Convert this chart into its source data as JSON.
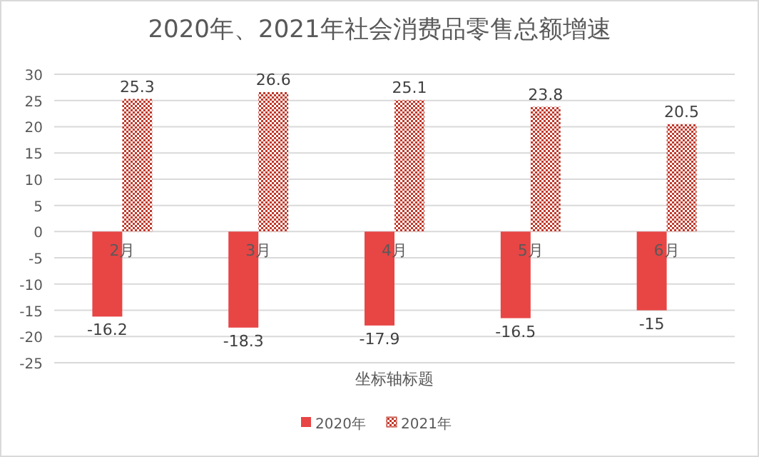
{
  "chart_data": {
    "type": "bar",
    "title": "2020年、2021年社会消费品零售总额增速",
    "xlabel": "坐标轴标题",
    "categories": [
      "2月",
      "3月",
      "4月",
      "5月",
      "6月"
    ],
    "series": [
      {
        "name": "2020年",
        "color": "#e84545",
        "values": [
          -16.2,
          -18.3,
          -17.9,
          -16.5,
          -15
        ]
      },
      {
        "name": "2021年",
        "color": "#c0392b",
        "values": [
          25.3,
          26.6,
          25.1,
          23.8,
          20.5
        ]
      }
    ],
    "ylim": [
      -25,
      30
    ],
    "yticks": [
      -25,
      -20,
      -15,
      -10,
      -5,
      0,
      5,
      10,
      15,
      20,
      25,
      30
    ],
    "grid": "y",
    "legend": "bottom",
    "data_labels": true
  }
}
